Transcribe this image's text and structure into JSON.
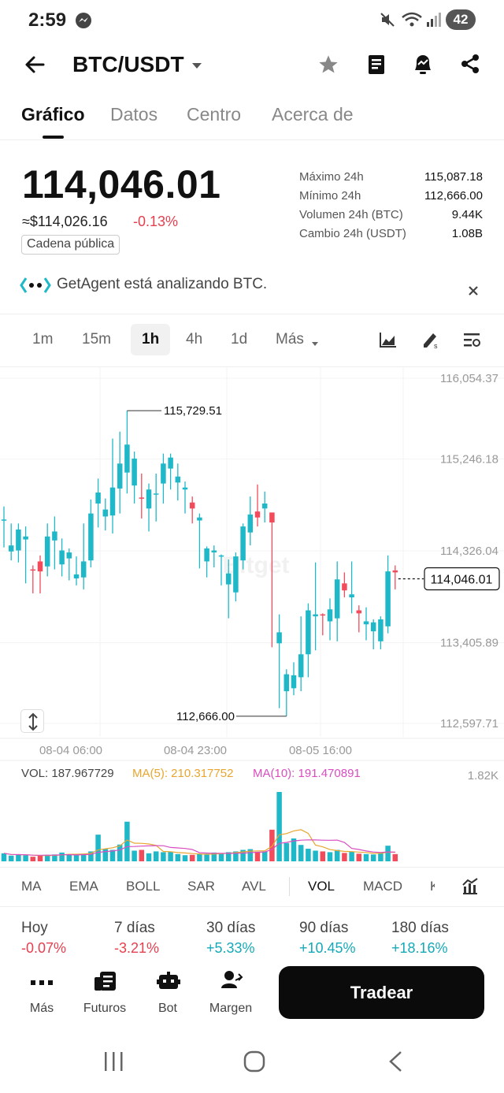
{
  "status_bar": {
    "time": "2:59",
    "battery": "42"
  },
  "header": {
    "pair": "BTC/USDT"
  },
  "tabs": [
    {
      "label": "Gráfico",
      "active": true
    },
    {
      "label": "Datos",
      "active": false
    },
    {
      "label": "Centro",
      "active": false
    },
    {
      "label": "Acerca de",
      "active": false
    }
  ],
  "ticker": {
    "last_price": "114,046.01",
    "usd_price": "≈$114,026.16",
    "change": "-0.13%",
    "chain_badge": "Cadena pública",
    "stats": [
      {
        "label": "Máximo 24h",
        "value": "115,087.18"
      },
      {
        "label": "Mínimo 24h",
        "value": "112,666.00"
      },
      {
        "label": "Volumen 24h (BTC)",
        "value": "9.44K"
      },
      {
        "label": "Cambio 24h (USDT)",
        "value": "1.08B"
      }
    ]
  },
  "agent_banner": {
    "text": "GetAgent está analizando BTC."
  },
  "timeframes": [
    {
      "label": "1m",
      "active": false
    },
    {
      "label": "15m",
      "active": false
    },
    {
      "label": "1h",
      "active": true
    },
    {
      "label": "4h",
      "active": false
    },
    {
      "label": "1d",
      "active": false
    },
    {
      "label": "Más",
      "active": false
    }
  ],
  "colors": {
    "up": "#1fb8c9",
    "down": "#f24b5b",
    "ma5": "#e8a630",
    "ma10": "#d94ec0"
  },
  "chart_data": {
    "type": "candlestick",
    "y_ticks": [
      "116,054.37",
      "115,246.18",
      "114,326.04",
      "113,405.89",
      "112,597.71"
    ],
    "x_ticks": [
      "08-04 06:00",
      "08-04 23:00",
      "08-05 16:00"
    ],
    "ylim": [
      112597.71,
      116054.37
    ],
    "last_price_tag": "114,046.01",
    "high_annotation": "115,729.51",
    "low_annotation": "112,666.00",
    "watermark": "Bitget",
    "candles": [
      [
        114630,
        114640,
        114380,
        114360,
        114770
      ],
      [
        114320,
        114380,
        114260,
        114230,
        114600
      ],
      [
        114330,
        114540,
        114230,
        114210,
        114600
      ],
      [
        114440,
        114470,
        114160,
        114000,
        114570
      ],
      [
        114140,
        114130,
        114020,
        113900,
        114180
      ],
      [
        114220,
        114120,
        114120,
        113900,
        114280
      ],
      [
        114170,
        114470,
        114140,
        114070,
        114600
      ],
      [
        114430,
        114520,
        114200,
        114140,
        114670
      ],
      [
        114190,
        114330,
        114110,
        114070,
        114450
      ],
      [
        114250,
        114310,
        114050,
        114030,
        114350
      ],
      [
        114050,
        114090,
        114020,
        113980,
        114270
      ],
      [
        114060,
        114220,
        114060,
        113940,
        114600
      ],
      [
        114230,
        114700,
        114190,
        114160,
        114840
      ],
      [
        114800,
        114910,
        114640,
        114560,
        115050
      ],
      [
        114670,
        114740,
        114600,
        114530,
        114850
      ],
      [
        114680,
        114960,
        114520,
        114500,
        115450
      ],
      [
        114950,
        115200,
        114950,
        114700,
        115520
      ],
      [
        115110,
        115390,
        114950,
        114900,
        115730
      ],
      [
        114980,
        115250,
        115050,
        114800,
        115320
      ],
      [
        114860,
        114850,
        114990,
        114650,
        115100
      ],
      [
        114750,
        114940,
        114690,
        114520,
        115000
      ],
      [
        114890,
        114900,
        114750,
        114620,
        115100
      ],
      [
        115000,
        115200,
        114900,
        114800,
        115300
      ],
      [
        115150,
        115260,
        115010,
        114940,
        115300
      ],
      [
        115010,
        115070,
        114970,
        114830,
        115200
      ],
      [
        114940,
        114960,
        114750,
        114700,
        115020
      ],
      [
        114810,
        114750,
        114660,
        114600,
        114870
      ],
      [
        114630,
        114660,
        114200,
        114150,
        114700
      ],
      [
        114220,
        114350,
        114200,
        114060,
        114370
      ],
      [
        114310,
        114330,
        114240,
        114160,
        114380
      ],
      [
        114280,
        114280,
        114040,
        113980,
        114290
      ],
      [
        113990,
        114100,
        113890,
        113650,
        114240
      ],
      [
        113910,
        114270,
        113850,
        113820,
        114310
      ],
      [
        114230,
        114570,
        114220,
        114140,
        114600
      ],
      [
        114510,
        114690,
        114420,
        114380,
        114870
      ],
      [
        114720,
        114660,
        114650,
        114570,
        114990
      ],
      [
        114750,
        114800,
        114750,
        114610,
        114920
      ],
      [
        114710,
        114610,
        113410,
        113360,
        114620
      ],
      [
        113400,
        113510,
        112830,
        112750,
        113690
      ],
      [
        112920,
        113090,
        112760,
        112670,
        113140
      ],
      [
        112950,
        113080,
        112990,
        112880,
        113210
      ],
      [
        113060,
        113290,
        113030,
        112920,
        113670
      ],
      [
        113290,
        113730,
        113120,
        113060,
        113800
      ],
      [
        113670,
        113690,
        113600,
        113330,
        114210
      ],
      [
        113690,
        113680,
        113590,
        113480,
        113700
      ],
      [
        113620,
        113740,
        113690,
        113430,
        113850
      ],
      [
        113650,
        114040,
        113750,
        113420,
        114220
      ],
      [
        114000,
        113930,
        113950,
        113860,
        114110
      ],
      [
        113860,
        113890,
        113790,
        113700,
        114220
      ],
      [
        113730,
        113700,
        113540,
        113510,
        113780
      ],
      [
        113590,
        113620,
        113460,
        113430,
        113760
      ],
      [
        113520,
        113610,
        113410,
        113340,
        113640
      ],
      [
        113420,
        113640,
        113440,
        113340,
        113670
      ],
      [
        113570,
        114120,
        113580,
        113500,
        114280
      ],
      [
        114130,
        114110,
        114040,
        113940,
        114180
      ]
    ],
    "volume": {
      "vol_label": "VOL: 187.967729",
      "ma5_label": "MA(5): 210.317752",
      "ma10_label": "MA(10): 191.470891",
      "max_label": "1.82K"
    }
  },
  "indicator_tabs": [
    {
      "label": "MA",
      "active": false
    },
    {
      "label": "EMA",
      "active": false
    },
    {
      "label": "BOLL",
      "active": false
    },
    {
      "label": "SAR",
      "active": false
    },
    {
      "label": "AVL",
      "active": false
    },
    {
      "label": "VOL",
      "active": true
    },
    {
      "label": "MACD",
      "active": false
    },
    {
      "label": "K",
      "active": false
    }
  ],
  "performance": [
    {
      "label": "Hoy",
      "value": "-0.07%",
      "color": "#e5404f"
    },
    {
      "label": "7 días",
      "value": "-3.21%",
      "color": "#e5404f"
    },
    {
      "label": "30 días",
      "value": "+5.33%",
      "color": "#16a9b8"
    },
    {
      "label": "90 días",
      "value": "+10.45%",
      "color": "#16a9b8"
    },
    {
      "label": "180 días",
      "value": "+18.16%",
      "color": "#16a9b8"
    }
  ],
  "bottom_nav": [
    {
      "label": "Más",
      "icon": "more-dots-icon"
    },
    {
      "label": "Futuros",
      "icon": "futures-icon"
    },
    {
      "label": "Bot",
      "icon": "bot-icon"
    },
    {
      "label": "Margen",
      "icon": "margin-icon"
    }
  ],
  "trade_button": "Tradear"
}
